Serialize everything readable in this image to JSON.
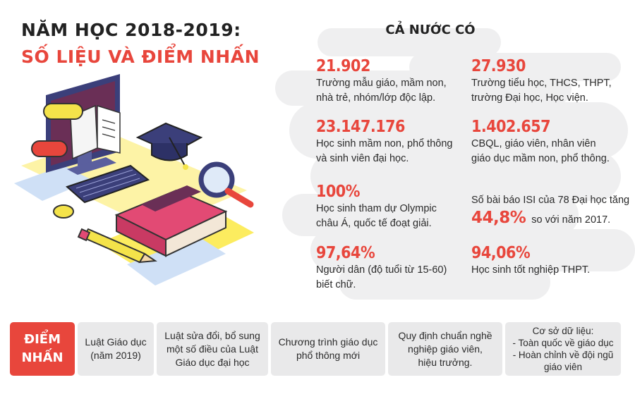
{
  "header": {
    "title_line1": "NĂM HỌC 2018-2019:",
    "title_line2": "SỐ LIỆU VÀ ĐIỂM NHẤN"
  },
  "country_heading": "CẢ NƯỚC CÓ",
  "stats": [
    {
      "value": "21.902",
      "desc": "Trường mẫu giáo, mầm non,\nnhà trẻ, nhóm/lớp độc lập."
    },
    {
      "value": "27.930",
      "desc": "Trường tiểu học, THCS, THPT,\ntrường Đại học, Học viện."
    },
    {
      "value": "23.147.176",
      "desc": "Học sinh mầm non, phổ thông\nvà sinh viên đại học."
    },
    {
      "value": "1.402.657",
      "desc": "CBQL, giáo viên, nhân viên\ngiáo dục mầm non, phổ thông."
    },
    {
      "value": "100%",
      "desc": "Học sinh tham dự Olympic\nchâu Á, quốc tế đoạt giải."
    },
    {
      "value": "97,64%",
      "desc": "Người dân (độ tuổi từ 15-60)\nbiết chữ."
    },
    {
      "value": "94,06%",
      "desc": "Học sinh tốt nghiệp THPT."
    }
  ],
  "isi": {
    "prefix": "Số bài báo ISI của 78 Đại học tăng",
    "value": "44,8%",
    "suffix": "so với năm 2017."
  },
  "highlights": {
    "label_line1": "ĐIỂM",
    "label_line2": "NHẤN",
    "cards": [
      "Luật Giáo dục\n(năm 2019)",
      "Luật sửa đổi, bổ sung\nmột số điều của Luật\nGiáo dục đại học",
      "Chương trình giáo dục\nphổ thông mới",
      "Quy định chuẩn nghề\nnghiệp giáo viên,\nhiệu trưởng.",
      "Cơ sở dữ liệu:\n- Toàn quốc về giáo dục\n- Hoàn chỉnh về đội ngũ\ngiáo viên"
    ]
  },
  "colors": {
    "accent": "#e8463c",
    "card_bg": "#e9e9ea",
    "cloud": "#eeeeef"
  }
}
